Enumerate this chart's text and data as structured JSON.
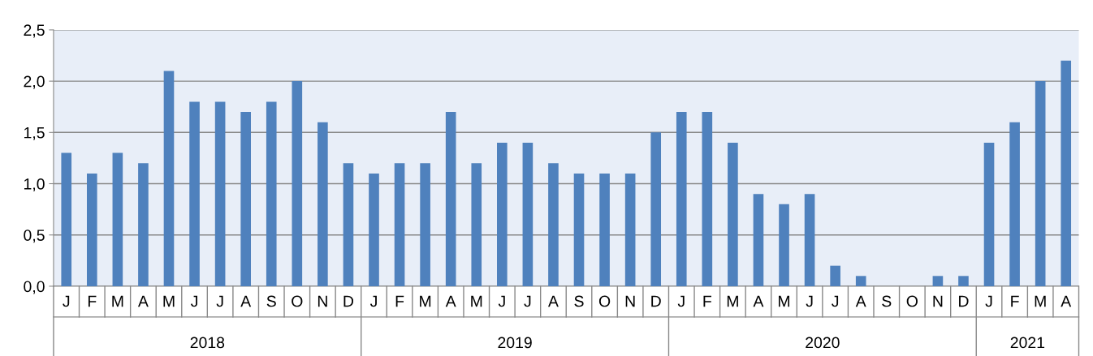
{
  "chart_data": {
    "type": "bar",
    "categories": [
      "J",
      "F",
      "M",
      "A",
      "M",
      "J",
      "J",
      "A",
      "S",
      "O",
      "N",
      "D",
      "J",
      "F",
      "M",
      "A",
      "M",
      "J",
      "J",
      "A",
      "S",
      "O",
      "N",
      "D",
      "J",
      "F",
      "M",
      "A",
      "M",
      "J",
      "J",
      "A",
      "S",
      "O",
      "N",
      "D",
      "J",
      "F",
      "M",
      "A"
    ],
    "values": [
      1.3,
      1.1,
      1.3,
      1.2,
      2.1,
      1.8,
      1.8,
      1.7,
      1.8,
      2.0,
      1.6,
      1.2,
      1.1,
      1.2,
      1.2,
      1.7,
      1.2,
      1.4,
      1.4,
      1.2,
      1.1,
      1.1,
      1.1,
      1.5,
      1.7,
      1.7,
      1.4,
      0.9,
      0.8,
      0.9,
      0.2,
      0.1,
      0,
      0,
      0.1,
      0.1,
      1.4,
      1.6,
      2.0,
      2.2
    ],
    "color": "#4f81bd",
    "ylim": [
      0,
      2.5
    ],
    "yticks": [
      {
        "value": 0,
        "label": "0,0"
      },
      {
        "value": 0.5,
        "label": "0,5"
      },
      {
        "value": 1,
        "label": "1,0"
      },
      {
        "value": 1.5,
        "label": "1,5"
      },
      {
        "value": 2,
        "label": "2,0"
      },
      {
        "value": 2.5,
        "label": "2,5"
      }
    ],
    "grid": "y",
    "annotations": [
      "2018",
      "2019",
      "2020",
      "2021"
    ]
  }
}
